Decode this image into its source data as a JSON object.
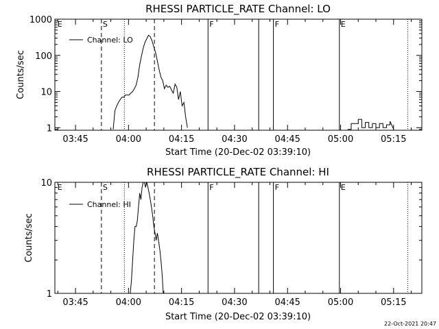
{
  "footer": {
    "timestamp": "22-Oct-2021 20:47"
  },
  "chart_data": [
    {
      "type": "line",
      "title": "RHESSI PARTICLE_RATE Channel: LO",
      "xlabel": "Start Time (20-Dec-02 03:39:10)",
      "ylabel": "Counts/sec",
      "xlim": [
        "03:39:10",
        "05:23:00"
      ],
      "ylim": [
        0.85,
        1000
      ],
      "yscale": "log",
      "x_ticks": [
        "03:45",
        "04:00",
        "04:15",
        "04:30",
        "04:45",
        "05:00",
        "05:15"
      ],
      "y_ticks": [
        "1",
        "10",
        "100",
        "1000"
      ],
      "legend": {
        "position": "top-left",
        "entries": [
          "Channel: LO"
        ]
      },
      "markers": [
        {
          "label": "E",
          "time": "03:39:30",
          "style": "none"
        },
        {
          "label": "S",
          "time": "03:52:20",
          "style": "dashed"
        },
        {
          "label": "",
          "time": "03:58:50",
          "style": "dotted"
        },
        {
          "label": "",
          "time": "04:07:20",
          "style": "dashed"
        },
        {
          "label": "F",
          "time": "04:22:30",
          "style": "solid"
        },
        {
          "label": "",
          "time": "04:36:50",
          "style": "solid"
        },
        {
          "label": "F",
          "time": "04:41:00",
          "style": "solid"
        },
        {
          "label": "E",
          "time": "04:59:40",
          "style": "solid"
        },
        {
          "label": "",
          "time": "05:19:00",
          "style": "dotted"
        }
      ],
      "series": [
        {
          "name": "Channel: LO",
          "segments": [
            {
              "x": [
                "03:55:40",
                "03:56:10",
                "03:56:40",
                "03:57:10",
                "03:57:40",
                "03:58:10",
                "03:58:40",
                "03:59:10",
                "03:59:40",
                "04:00:10",
                "04:00:40",
                "04:01:10",
                "04:01:40",
                "04:02:10",
                "04:02:40",
                "04:03:10",
                "04:03:40",
                "04:04:10",
                "04:04:40",
                "04:05:10",
                "04:05:40",
                "04:06:10",
                "04:06:40",
                "04:07:10",
                "04:07:40",
                "04:08:10",
                "04:08:40",
                "04:09:10",
                "04:09:40",
                "04:10:10",
                "04:10:40",
                "04:11:10",
                "04:11:40",
                "04:12:10",
                "04:12:40",
                "04:13:10",
                "04:13:40",
                "04:14:10",
                "04:14:40",
                "04:15:10",
                "04:15:40",
                "04:16:10",
                "04:16:40"
              ],
              "y": [
                0.9,
                3,
                4,
                5,
                6,
                7,
                7,
                8,
                8,
                8,
                9,
                10,
                12,
                15,
                25,
                55,
                95,
                160,
                230,
                290,
                360,
                330,
                250,
                170,
                120,
                70,
                40,
                25,
                20,
                12,
                15,
                13,
                14,
                11,
                9,
                16,
                13,
                6,
                10,
                4,
                5,
                2,
                1
              ]
            },
            {
              "x": [
                "05:02:00",
                "05:03:00",
                "05:03:00",
                "05:05:00",
                "05:05:00",
                "05:06:00",
                "05:06:00",
                "05:07:00",
                "05:07:00",
                "05:08:00",
                "05:08:00",
                "05:09:00",
                "05:09:00",
                "05:10:00",
                "05:10:00",
                "05:11:00",
                "05:11:00",
                "05:12:00",
                "05:12:00",
                "05:13:00",
                "05:13:00",
                "05:14:00",
                "05:14:00",
                "05:15:00"
              ],
              "y": [
                0.9,
                0.9,
                1.3,
                1.3,
                1.7,
                1.7,
                1,
                1,
                1.4,
                1.4,
                1,
                1,
                1.3,
                1.3,
                1,
                1,
                1.3,
                1.3,
                1,
                1,
                1.2,
                1.2,
                1.5,
                0.9
              ]
            }
          ]
        }
      ]
    },
    {
      "type": "line",
      "title": "RHESSI PARTICLE_RATE Channel: HI",
      "xlabel": "Start Time (20-Dec-02 03:39:10)",
      "ylabel": "Counts/sec",
      "xlim": [
        "03:39:10",
        "05:23:00"
      ],
      "ylim": [
        1,
        10
      ],
      "yscale": "log",
      "x_ticks": [
        "03:45",
        "04:00",
        "04:15",
        "04:30",
        "04:45",
        "05:00",
        "05:15"
      ],
      "y_ticks": [
        "1",
        "10"
      ],
      "legend": {
        "position": "top-left",
        "entries": [
          "Channel: HI"
        ]
      },
      "markers": [
        {
          "label": "E",
          "time": "03:39:30",
          "style": "none"
        },
        {
          "label": "S",
          "time": "03:52:20",
          "style": "dashed"
        },
        {
          "label": "",
          "time": "03:58:50",
          "style": "dotted"
        },
        {
          "label": "",
          "time": "04:07:20",
          "style": "dashed"
        },
        {
          "label": "F",
          "time": "04:22:30",
          "style": "solid"
        },
        {
          "label": "",
          "time": "04:36:50",
          "style": "solid"
        },
        {
          "label": "F",
          "time": "04:41:00",
          "style": "solid"
        },
        {
          "label": "E",
          "time": "04:59:40",
          "style": "solid"
        },
        {
          "label": "",
          "time": "05:19:00",
          "style": "dotted"
        }
      ],
      "series": [
        {
          "name": "Channel: HI",
          "segments": [
            {
              "x": [
                "04:00:30",
                "04:00:50",
                "04:01:10",
                "04:01:30",
                "04:01:50",
                "04:02:10",
                "04:02:30",
                "04:02:50",
                "04:03:10",
                "04:03:30",
                "04:03:50",
                "04:04:10",
                "04:04:30",
                "04:04:50",
                "04:05:10",
                "04:05:30",
                "04:05:50",
                "04:06:10",
                "04:06:30",
                "04:06:50",
                "04:07:10",
                "04:07:30",
                "04:07:50",
                "04:08:10",
                "04:08:30",
                "04:08:50",
                "04:09:10",
                "04:09:30",
                "04:09:50"
              ],
              "y": [
                1,
                1.3,
                2,
                3,
                4,
                4,
                4.5,
                6,
                8,
                7,
                9,
                10,
                10,
                9,
                10,
                9,
                8,
                7,
                6,
                5,
                4,
                3.5,
                3,
                3.5,
                3,
                2.5,
                2,
                1.5,
                1
              ]
            }
          ]
        }
      ]
    }
  ]
}
